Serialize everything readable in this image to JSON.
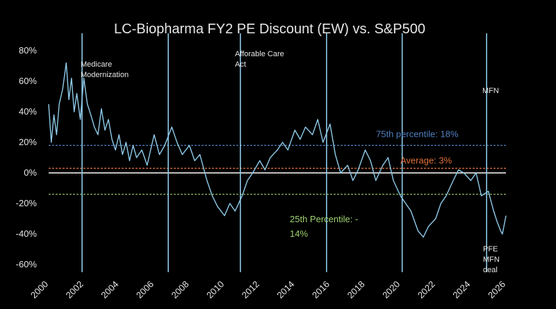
{
  "chart_data": {
    "type": "line",
    "title": "LC-Biopharma FY2 PE Discount (EW) vs. S&P500",
    "xlabel": "",
    "ylabel": "",
    "xlim": [
      2000,
      2026
    ],
    "ylim": [
      -65,
      85
    ],
    "x_ticks": [
      2000,
      2002,
      2004,
      2006,
      2008,
      2010,
      2012,
      2014,
      2016,
      2018,
      2020,
      2022,
      2024,
      2026
    ],
    "y_ticks": [
      -60,
      -40,
      -20,
      0,
      20,
      40,
      60,
      80
    ],
    "y_tick_labels": [
      "-60%",
      "-40%",
      "-20%",
      "0%",
      "20%",
      "40%",
      "60%",
      "80%"
    ],
    "colors": {
      "series": "#8fcbea",
      "percentile_75": "#4f7fc0",
      "average": "#e0703a",
      "percentile_25": "#9fd26f",
      "event_line": "#8fcbea",
      "zero_line": "#ffffff",
      "text": "#e6e6e6"
    },
    "series": [
      {
        "name": "LC-Biopharma FY2 PE Discount (EW)",
        "x": [
          2000.0,
          2000.15,
          2000.3,
          2000.45,
          2000.6,
          2000.8,
          2001.0,
          2001.15,
          2001.3,
          2001.45,
          2001.6,
          2001.8,
          2002.0,
          2002.2,
          2002.4,
          2002.6,
          2002.8,
          2003.0,
          2003.2,
          2003.4,
          2003.6,
          2003.8,
          2004.0,
          2004.2,
          2004.4,
          2004.6,
          2004.8,
          2005.0,
          2005.3,
          2005.6,
          2006.0,
          2006.3,
          2006.6,
          2007.0,
          2007.3,
          2007.6,
          2008.0,
          2008.3,
          2008.6,
          2009.0,
          2009.3,
          2009.6,
          2010.0,
          2010.3,
          2010.6,
          2011.0,
          2011.3,
          2011.6,
          2012.0,
          2012.3,
          2012.6,
          2013.0,
          2013.3,
          2013.6,
          2014.0,
          2014.3,
          2014.6,
          2015.0,
          2015.3,
          2015.6,
          2016.0,
          2016.3,
          2016.6,
          2017.0,
          2017.3,
          2017.6,
          2018.0,
          2018.3,
          2018.6,
          2019.0,
          2019.3,
          2019.6,
          2020.0,
          2020.3,
          2020.6,
          2021.0,
          2021.3,
          2021.6,
          2022.0,
          2022.3,
          2022.6,
          2023.0,
          2023.3,
          2023.6,
          2024.0,
          2024.3,
          2024.6,
          2025.0,
          2025.3,
          2025.5,
          2025.7,
          2025.8,
          2026.0
        ],
        "y": [
          45,
          20,
          38,
          25,
          45,
          55,
          72,
          48,
          62,
          40,
          52,
          35,
          62,
          45,
          38,
          30,
          25,
          42,
          28,
          35,
          22,
          15,
          25,
          12,
          20,
          8,
          18,
          10,
          15,
          5,
          25,
          12,
          18,
          30,
          20,
          12,
          18,
          8,
          12,
          -5,
          -15,
          -22,
          -28,
          -20,
          -25,
          -15,
          -5,
          0,
          8,
          2,
          10,
          15,
          20,
          15,
          28,
          22,
          30,
          25,
          35,
          20,
          32,
          12,
          0,
          5,
          -5,
          2,
          15,
          8,
          -5,
          5,
          10,
          -5,
          -15,
          -20,
          -25,
          -38,
          -42,
          -35,
          -30,
          -20,
          -15,
          -5,
          2,
          0,
          -5,
          0,
          -15,
          -12,
          -25,
          -32,
          -38,
          -40,
          -28
        ]
      }
    ],
    "reference_lines": [
      {
        "name": "75th percentile",
        "label": "75th percentile: 18%",
        "value": 18
      },
      {
        "name": "Average",
        "label": "Average: 3%",
        "value": 3
      },
      {
        "name": "25th percentile",
        "label_line1": "25th Percentile: -",
        "label_line2": "14%",
        "value": -14
      }
    ],
    "events": [
      {
        "name": "medicare-modernization",
        "x": 2001.9,
        "label_lines": [
          "Medicare",
          "Modernization"
        ]
      },
      {
        "name": "affordable-care-act",
        "x": 2006.8,
        "label_lines": []
      },
      {
        "name": "event-2010",
        "x": 2010.9,
        "label_lines": [
          "Afforable Care",
          "Act"
        ]
      },
      {
        "name": "event-2015",
        "x": 2015.8,
        "label_lines": []
      },
      {
        "name": "event-2020",
        "x": 2020.1,
        "label_lines": []
      },
      {
        "name": "mfn",
        "x": 2024.9,
        "label_lines": [
          "MFN"
        ]
      }
    ],
    "annotations": [
      {
        "name": "pfe-mfn-deal",
        "x": 2025.4,
        "y": -42,
        "label_lines": [
          "PFE",
          "MFN",
          "deal"
        ]
      }
    ]
  }
}
